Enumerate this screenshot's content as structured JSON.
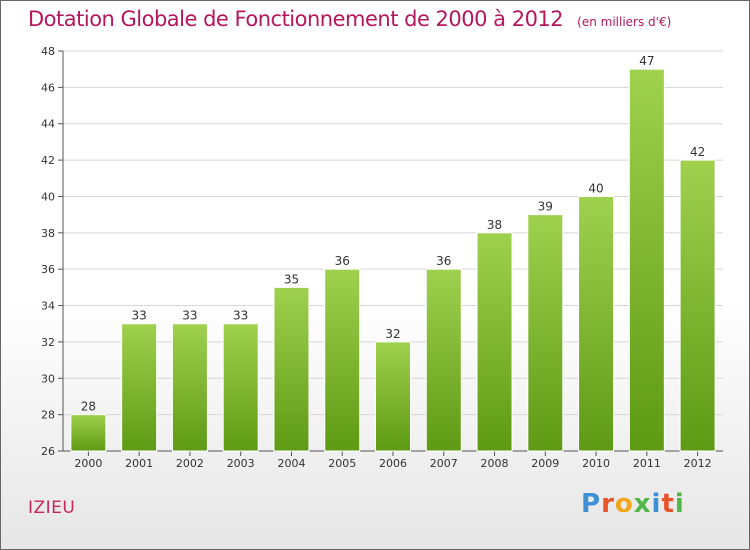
{
  "title": "Dotation Globale de Fonctionnement de 2000 à 2012",
  "unit_note": "(en milliers d'€)",
  "commune": "IZIEU",
  "logo": {
    "letters": [
      "P",
      "r",
      "o",
      "x",
      "i",
      "t",
      "i"
    ],
    "colors": [
      "#3d8fd6",
      "#e8532a",
      "#f1a51d",
      "#4fb849",
      "#3d8fd6",
      "#e8532a",
      "#4fb849"
    ]
  },
  "colors": {
    "bar_top": "#9fd14e",
    "bar_bottom": "#5e9a14",
    "title": "#b5175c",
    "commune": "#c8245e"
  },
  "chart_data": {
    "type": "bar",
    "categories": [
      "2000",
      "2001",
      "2002",
      "2003",
      "2004",
      "2005",
      "2006",
      "2007",
      "2008",
      "2009",
      "2010",
      "2011",
      "2012"
    ],
    "values": [
      28,
      33,
      33,
      33,
      35,
      36,
      32,
      36,
      38,
      39,
      40,
      47,
      42
    ],
    "ylim": [
      26,
      48
    ],
    "yticks": [
      26,
      28,
      30,
      32,
      34,
      36,
      38,
      40,
      42,
      44,
      46,
      48
    ],
    "grid": true
  }
}
